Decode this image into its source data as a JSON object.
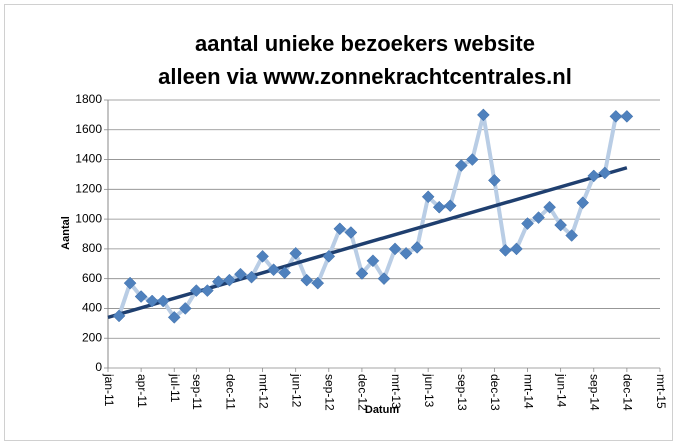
{
  "chart_data": {
    "type": "line",
    "title": [
      "aantal unieke bezoekers website",
      "alleen via www.zonnekrachtcentrales.nl"
    ],
    "ylabel": "Aantal",
    "xlabel": "Datum",
    "x": [
      "2011-02",
      "2011-03",
      "2011-04",
      "2011-05",
      "2011-06",
      "2011-07",
      "2011-08",
      "2011-09",
      "2011-10",
      "2011-11",
      "2011-12",
      "2012-01",
      "2012-02",
      "2012-03",
      "2012-04",
      "2012-05",
      "2012-06",
      "2012-07",
      "2012-08",
      "2012-09",
      "2012-10",
      "2012-11",
      "2012-12",
      "2013-01",
      "2013-02",
      "2013-03",
      "2013-04",
      "2013-05",
      "2013-06",
      "2013-07",
      "2013-08",
      "2013-09",
      "2013-10",
      "2013-11",
      "2013-12",
      "2014-01",
      "2014-02",
      "2014-03",
      "2014-04",
      "2014-05",
      "2014-06",
      "2014-07",
      "2014-08",
      "2014-09",
      "2014-10",
      "2014-11",
      "2014-12"
    ],
    "series": [
      {
        "color": "#4f81bd",
        "line_color": "#b9cde5",
        "values": [
          350,
          570,
          480,
          450,
          450,
          340,
          400,
          520,
          520,
          580,
          590,
          630,
          610,
          750,
          660,
          640,
          770,
          590,
          570,
          750,
          935,
          910,
          635,
          720,
          600,
          800,
          770,
          810,
          1150,
          1080,
          1090,
          1360,
          1400,
          1700,
          1260,
          790,
          800,
          970,
          1010,
          1080,
          960,
          890,
          1110,
          1290,
          1310,
          1690,
          1690
        ]
      }
    ],
    "trendline": {
      "color": "#1f3f6f",
      "x": [
        "2011-01",
        "2014-12"
      ],
      "values": [
        340,
        1345
      ]
    },
    "xlim": [
      "2011-01",
      "2015-03"
    ],
    "xticks": [
      {
        "value": "2011-01",
        "label": "jan-11"
      },
      {
        "value": "2011-04",
        "label": "apr-11"
      },
      {
        "value": "2011-07",
        "label": "jul-11"
      },
      {
        "value": "2011-09",
        "label": "sep-11"
      },
      {
        "value": "2011-12",
        "label": "dec-11"
      },
      {
        "value": "2012-03",
        "label": "mrt-12"
      },
      {
        "value": "2012-06",
        "label": "jun-12"
      },
      {
        "value": "2012-09",
        "label": "sep-12"
      },
      {
        "value": "2012-12",
        "label": "dec-12"
      },
      {
        "value": "2013-03",
        "label": "mrt-13"
      },
      {
        "value": "2013-06",
        "label": "jun-13"
      },
      {
        "value": "2013-09",
        "label": "sep-13"
      },
      {
        "value": "2013-12",
        "label": "dec-13"
      },
      {
        "value": "2014-03",
        "label": "mrt-14"
      },
      {
        "value": "2014-06",
        "label": "jun-14"
      },
      {
        "value": "2014-09",
        "label": "sep-14"
      },
      {
        "value": "2014-12",
        "label": "dec-14"
      },
      {
        "value": "2015-03",
        "label": "mrt-15"
      }
    ],
    "ylim": [
      0,
      1800
    ],
    "yticks": [
      0,
      200,
      400,
      600,
      800,
      1000,
      1200,
      1400,
      1600,
      1800
    ],
    "grid": true
  }
}
